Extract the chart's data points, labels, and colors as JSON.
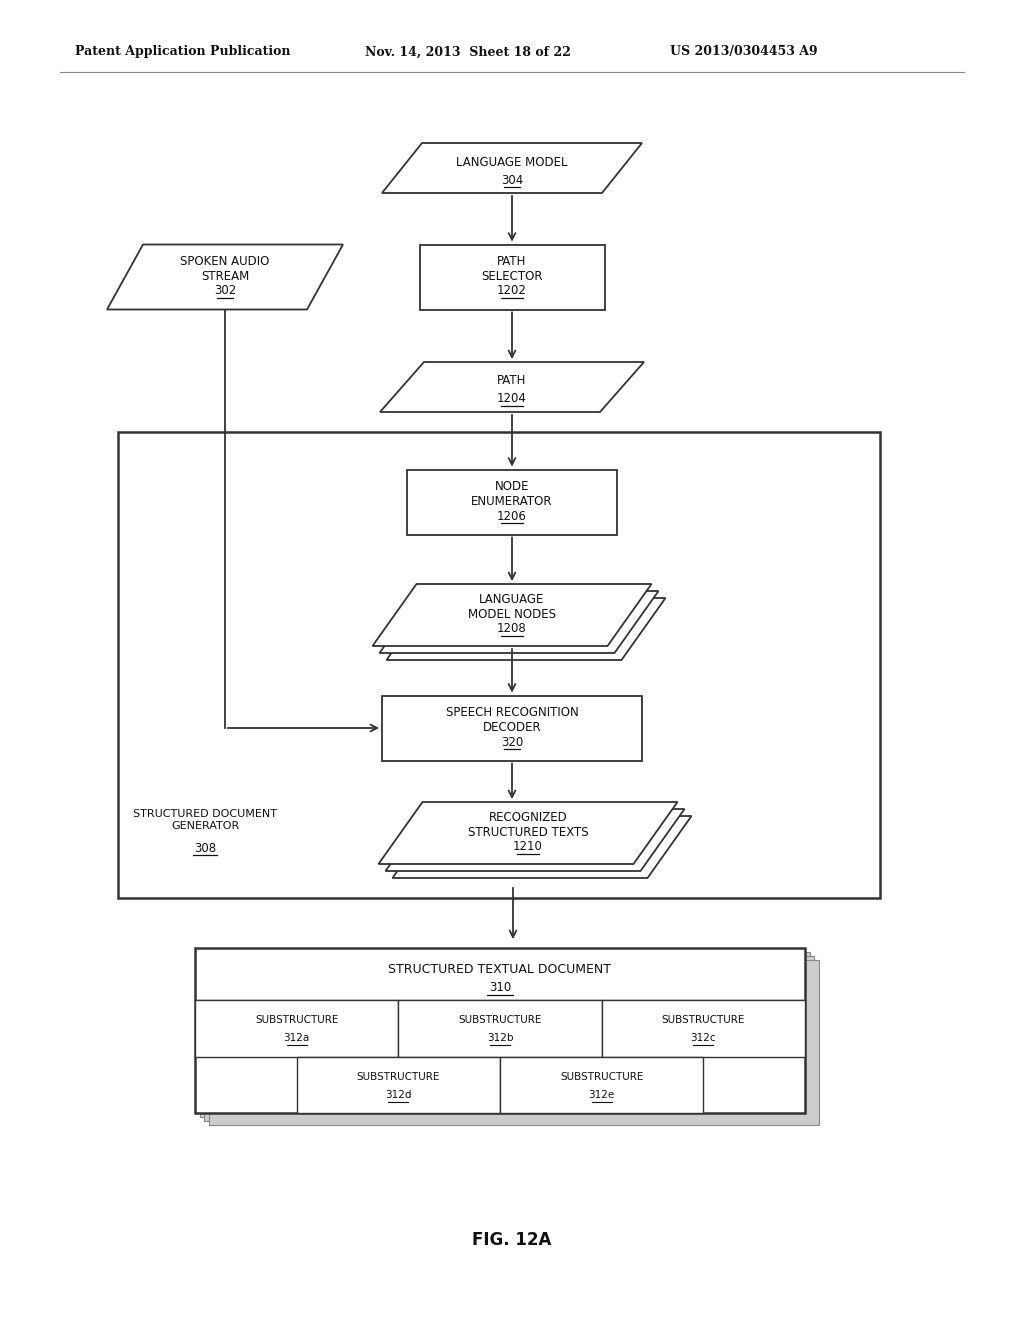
{
  "header_left": "Patent Application Publication",
  "header_mid": "Nov. 14, 2013  Sheet 18 of 22",
  "header_right": "US 2013/0304453 A9",
  "fig_caption": "FIG. 12A",
  "bg_color": "#ffffff",
  "line_color": "#333333",
  "text_color": "#111111"
}
